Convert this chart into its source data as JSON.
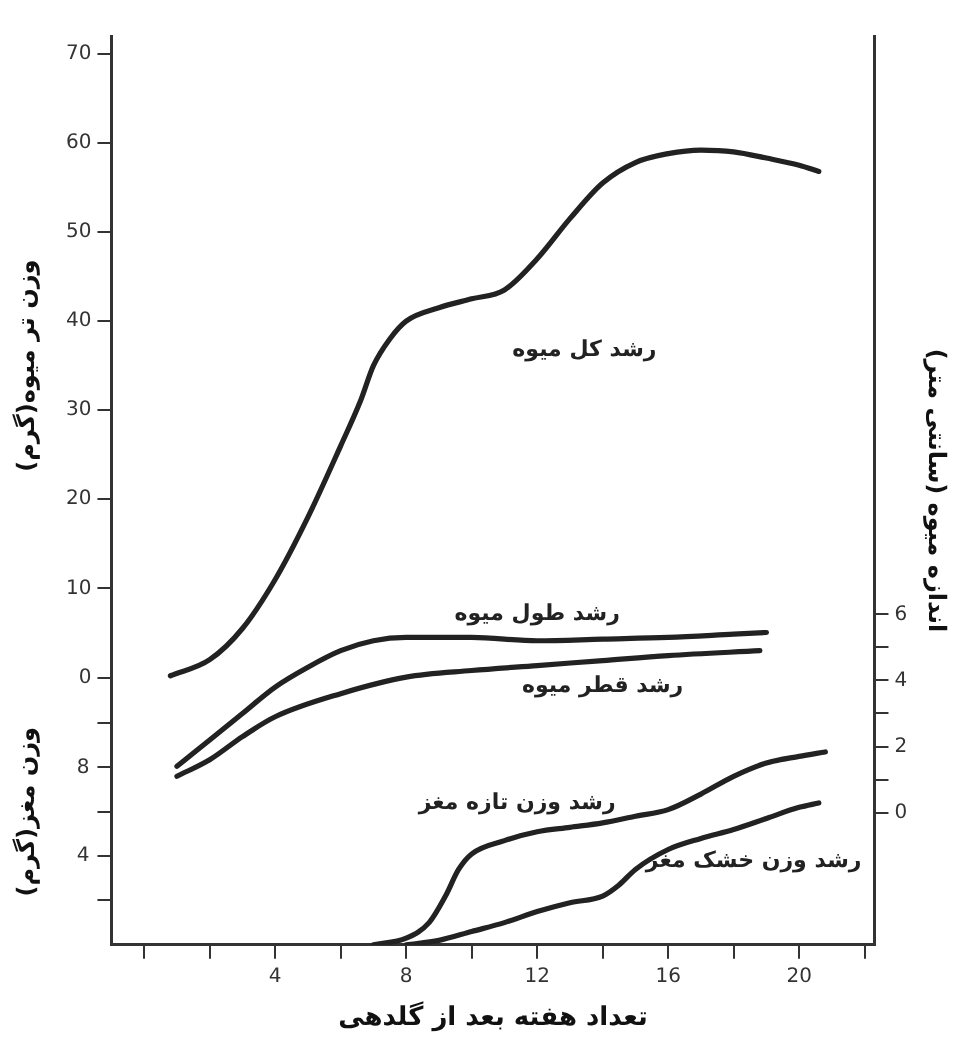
{
  "chart_data": {
    "type": "line",
    "xlabel": "تعداد هفته بعد از گلدهی",
    "ylabel": "وزن تر میوه(گرم)",
    "y2label": "اندازه میوه (سانتی متر)",
    "y3label": "وزن مغز(گرم)",
    "xlim": [
      -1,
      22.3
    ],
    "xticks": [
      {
        "value": 0,
        "label": null
      },
      {
        "value": 2,
        "label": null
      },
      4,
      {
        "value": 6,
        "label": null
      },
      8,
      {
        "value": 10,
        "label": null
      },
      12,
      {
        "value": 14,
        "label": null
      },
      16,
      {
        "value": 18,
        "label": null
      },
      20,
      {
        "value": 22,
        "label": null
      }
    ],
    "ylim": [
      -30,
      72
    ],
    "yticks": [
      0,
      10,
      20,
      30,
      40,
      50,
      60,
      70
    ],
    "y3lim": [
      0,
      41
    ],
    "y3ticks": [
      {
        "value": 2,
        "label": null
      },
      4,
      {
        "value": 6,
        "label": null
      },
      8,
      {
        "value": 10,
        "label": null
      }
    ],
    "y2lim": [
      -4,
      23.5
    ],
    "y2ticks": [
      0,
      {
        "value": 1,
        "label": null
      },
      2,
      {
        "value": 3,
        "label": null
      },
      4,
      {
        "value": 5,
        "label": null
      },
      6
    ],
    "grid": false,
    "legend": false,
    "marker": "none",
    "line_style": "solid",
    "series": [
      {
        "name": "رشد کل میوه",
        "color": "#222222",
        "x": [
          0.8,
          2,
          3,
          4,
          5,
          6,
          6.6,
          7,
          7.5,
          8,
          9,
          10,
          11,
          12,
          13,
          14,
          15,
          16,
          17,
          18,
          19,
          20,
          20.6
        ],
        "values": [
          0.2,
          2,
          5.5,
          11,
          18,
          26,
          31,
          35,
          38,
          40,
          41.5,
          42.5,
          43.5,
          47,
          51.5,
          55.5,
          57.8,
          58.8,
          59.2,
          59,
          58.3,
          57.5,
          56.8
        ]
      },
      {
        "name": "رشد طول میوه",
        "color": "#222222",
        "axis": "y2",
        "x": [
          1,
          2,
          3,
          4,
          5,
          6,
          7,
          8,
          10,
          12,
          14,
          16,
          18,
          19
        ],
        "values": [
          1.4,
          2.2,
          3,
          3.8,
          4.4,
          4.9,
          5.2,
          5.3,
          5.3,
          5.2,
          5.25,
          5.3,
          5.4,
          5.45
        ]
      },
      {
        "name": "رشد قطر میوه",
        "color": "#222222",
        "axis": "y2",
        "x": [
          1,
          2,
          3,
          4,
          6,
          8,
          10,
          12,
          14,
          16,
          18.8
        ],
        "values": [
          1.1,
          1.6,
          2.3,
          2.9,
          3.6,
          4.1,
          4.3,
          4.45,
          4.6,
          4.75,
          4.9
        ]
      },
      {
        "name": "رشد وزن تازه مغز",
        "color": "#222222",
        "axis": "y3",
        "x": [
          7,
          8,
          8.7,
          9.2,
          9.6,
          10,
          11,
          12,
          13,
          14,
          15,
          16,
          17,
          18,
          19,
          20,
          20.8
        ],
        "values": [
          0,
          0.3,
          1,
          2.2,
          3.4,
          4.1,
          4.7,
          5.1,
          5.3,
          5.5,
          5.8,
          6.1,
          6.8,
          7.6,
          8.2,
          8.5,
          8.7
        ]
      },
      {
        "name": "رشد وزن خشک مغز",
        "color": "#222222",
        "axis": "y3",
        "x": [
          8,
          9,
          10,
          11,
          12,
          13,
          14,
          14.5,
          15,
          16,
          17,
          18,
          19,
          20,
          20.6
        ],
        "values": [
          0,
          0.2,
          0.6,
          1,
          1.5,
          1.9,
          2.2,
          2.7,
          3.4,
          4.3,
          4.8,
          5.2,
          5.7,
          6.2,
          6.4
        ]
      }
    ]
  }
}
